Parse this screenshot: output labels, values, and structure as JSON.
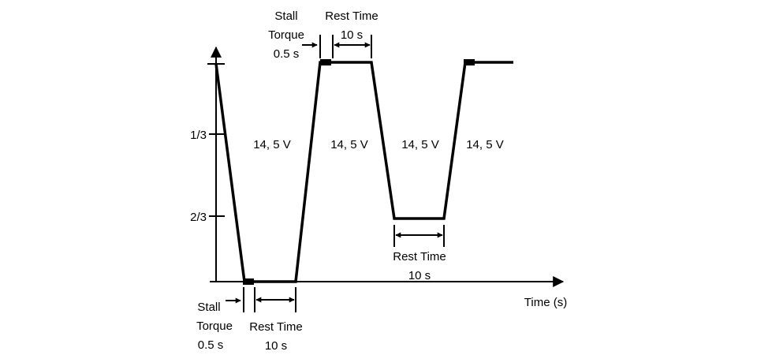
{
  "y_ticks": [
    "1/3",
    "2/3"
  ],
  "x_axis_label": "Time (s)",
  "voltage_labels": [
    "14, 5 V",
    "14, 5 V",
    "14, 5 V",
    "14, 5 V"
  ],
  "top_annotations": {
    "stall": [
      "Stall",
      "Torque",
      "0.5 s"
    ],
    "rest": [
      "Rest Time",
      "10 s"
    ]
  },
  "middle_annotation": {
    "rest": [
      "Rest Time",
      "10 s"
    ]
  },
  "bottom_annotations": {
    "stall": [
      "Stall",
      "Torque",
      "0.5 s"
    ],
    "rest": [
      "Rest Time",
      "10 s"
    ]
  }
}
